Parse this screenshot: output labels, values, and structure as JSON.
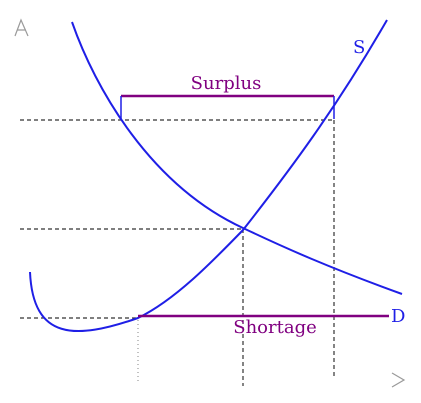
{
  "diagram": {
    "labels": {
      "supply": "S",
      "demand": "D",
      "surplus": "Surplus",
      "shortage": "Shortage"
    },
    "colors": {
      "curve": "#1f1fe6",
      "bracket": "#800080",
      "guide": "#333333",
      "axis_arrow": "#9a9a9a",
      "background": "#ffffff"
    }
  }
}
